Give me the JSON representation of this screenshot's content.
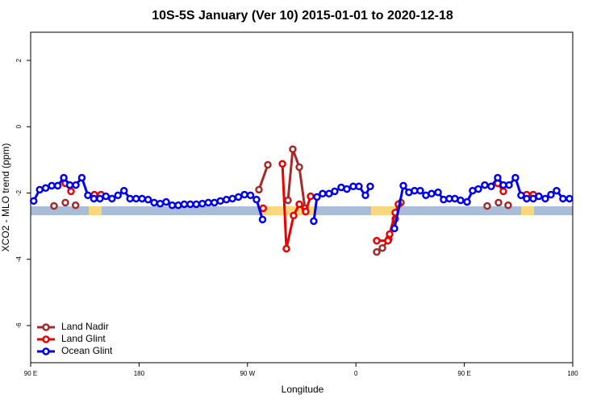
{
  "chart_data": {
    "type": "line",
    "title": "10S-5S January (Ver 10)   2015-01-01 to 2020-12-18",
    "x_label": "Longitude",
    "y_label": "XCO2 - MLO trend (ppm)",
    "xlim": [
      90,
      540
    ],
    "ylim": [
      -7.12,
      2.85
    ],
    "xticks": [
      {
        "value": 90,
        "label": "90 E"
      },
      180,
      {
        "value": 270,
        "label": "90 W"
      },
      {
        "value": 360,
        "label": "0"
      },
      {
        "value": 450,
        "label": "90 E"
      },
      {
        "value": 540,
        "label": "180"
      }
    ],
    "yticks": [
      -6,
      -4,
      -2,
      0,
      2
    ],
    "grid": false,
    "legend": "bottom-left",
    "series": [
      {
        "name": "Land Nadir",
        "color": "#a52a2a",
        "x": [
          109.4,
          null,
          118.8,
          null,
          127.3,
          null,
          279.5,
          286.9,
          null,
          303.6,
          307.6,
          313.0,
          317.7,
          null,
          377.3,
          382.0,
          387.3,
          392.7,
          397.4,
          null,
          469.0,
          null,
          478.4,
          null,
          486.4
        ],
        "values": [
          -2.39,
          null,
          -2.29,
          null,
          -2.37,
          null,
          -1.9,
          -1.15,
          null,
          -2.22,
          -0.68,
          -1.22,
          -2.46,
          null,
          -3.78,
          -3.66,
          -3.39,
          -2.78,
          -2.29,
          null,
          -2.39,
          null,
          -2.29,
          null,
          -2.37
        ]
      },
      {
        "name": "Land Glint",
        "color": "#ee0000",
        "x": [
          118.8,
          123.5,
          null,
          142.9,
          148.3,
          null,
          283.0,
          null,
          299.0,
          302.3,
          308.3,
          313.0,
          318.3,
          322.4,
          null,
          377.3,
          386.6,
          388.0,
          392.7,
          395.3,
          null,
          477.7,
          482.4,
          null,
          501.8,
          507.2
        ],
        "values": [
          -1.71,
          -1.95,
          null,
          -2.05,
          -2.05,
          null,
          -2.46,
          null,
          -1.12,
          -3.68,
          -2.68,
          -2.34,
          -2.56,
          -2.1,
          null,
          -3.44,
          -3.44,
          -3.24,
          -2.59,
          -2.34,
          null,
          -1.71,
          -1.95,
          null,
          -2.05,
          -2.05
        ]
      },
      {
        "name": "Ocean Glint",
        "color": "#0000ee",
        "x": [
          92.5,
          97.5,
          102.5,
          107.5,
          112.5,
          117.5,
          122.5,
          127.5,
          132.5,
          137.5,
          142.5,
          147.5,
          152.5,
          157.5,
          162.5,
          167.5,
          172.5,
          177.5,
          182.5,
          187.5,
          192.5,
          197.5,
          202.5,
          207.5,
          212.5,
          217.5,
          222.5,
          227.5,
          232.5,
          237.5,
          242.5,
          247.5,
          252.5,
          257.5,
          262.5,
          267.5,
          272.5,
          277.5,
          282.5,
          null,
          325.0,
          327.7,
          332.4,
          337.7,
          342.4,
          347.8,
          352.5,
          357.8,
          362.5,
          367.9,
          371.9,
          null,
          392.0,
          399.4,
          404.0,
          408.7,
          413.4,
          418.1,
          422.8,
          428.2,
          432.8,
          437.5,
          442.2,
          446.9,
          452.3,
          456.9,
          461.6,
          467.0,
          472.3,
          477.7,
          482.4,
          487.1,
          492.4,
          497.1,
          501.8,
          507.2,
          511.9,
          517.2,
          521.9,
          526.6,
          531.9,
          537.3
        ],
        "values": [
          -2.24,
          -1.9,
          -1.85,
          -1.78,
          -1.78,
          -1.54,
          -1.76,
          -1.76,
          -1.54,
          -2.07,
          -2.17,
          -2.17,
          -2.1,
          -2.17,
          -2.07,
          -1.93,
          -2.17,
          -2.17,
          -2.17,
          -2.2,
          -2.29,
          -2.32,
          -2.27,
          -2.37,
          -2.37,
          -2.34,
          -2.34,
          -2.34,
          -2.32,
          -2.29,
          -2.29,
          -2.24,
          -2.2,
          -2.17,
          -2.12,
          -2.05,
          -2.07,
          -2.2,
          -2.8,
          null,
          -2.85,
          -2.12,
          -2.02,
          -2.02,
          -1.95,
          -1.83,
          -1.88,
          -1.8,
          -1.8,
          -2.07,
          -1.8,
          null,
          -3.07,
          -1.78,
          -1.98,
          -1.93,
          -1.93,
          -2.07,
          -2.02,
          -1.98,
          -2.2,
          -2.17,
          -2.17,
          -2.22,
          -2.27,
          -1.93,
          -1.88,
          -1.76,
          -1.8,
          -1.54,
          -1.76,
          -1.76,
          -1.54,
          -2.07,
          -2.17,
          -2.17,
          -2.1,
          -2.17,
          -2.05,
          -1.93,
          -2.17,
          -2.17
        ]
      }
    ]
  }
}
